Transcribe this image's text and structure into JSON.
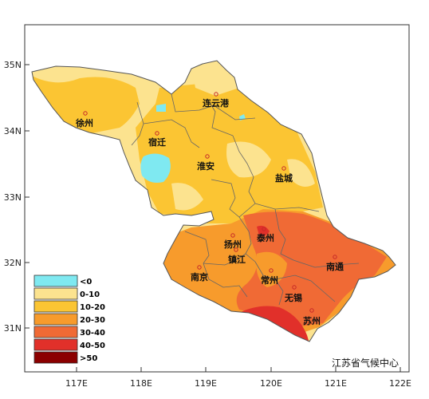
{
  "map": {
    "credit": "江苏省气候中心",
    "lat_labels": [
      "35N",
      "34N",
      "33N",
      "32N",
      "31N"
    ],
    "lon_labels": [
      "117E",
      "118E",
      "119E",
      "120E",
      "121E",
      "122E"
    ],
    "cities": [
      {
        "name": "连云港"
      },
      {
        "name": "徐州"
      },
      {
        "name": "宿迁"
      },
      {
        "name": "淮安"
      },
      {
        "name": "盐城"
      },
      {
        "name": "泰州"
      },
      {
        "name": "扬州"
      },
      {
        "name": "镇江"
      },
      {
        "name": "南京"
      },
      {
        "name": "南通"
      },
      {
        "name": "常州"
      },
      {
        "name": "无锡"
      },
      {
        "name": "苏州"
      }
    ],
    "legend": [
      {
        "label": "<0",
        "color": "#7fe9f1"
      },
      {
        "label": "0-10",
        "color": "#fce38f"
      },
      {
        "label": "10-20",
        "color": "#fbc533"
      },
      {
        "label": "20-30",
        "color": "#f79b2c"
      },
      {
        "label": "30-40",
        "color": "#f06a35"
      },
      {
        "label": "40-50",
        "color": "#e1302a"
      },
      {
        "label": ">50",
        "color": "#8b0000"
      }
    ]
  }
}
